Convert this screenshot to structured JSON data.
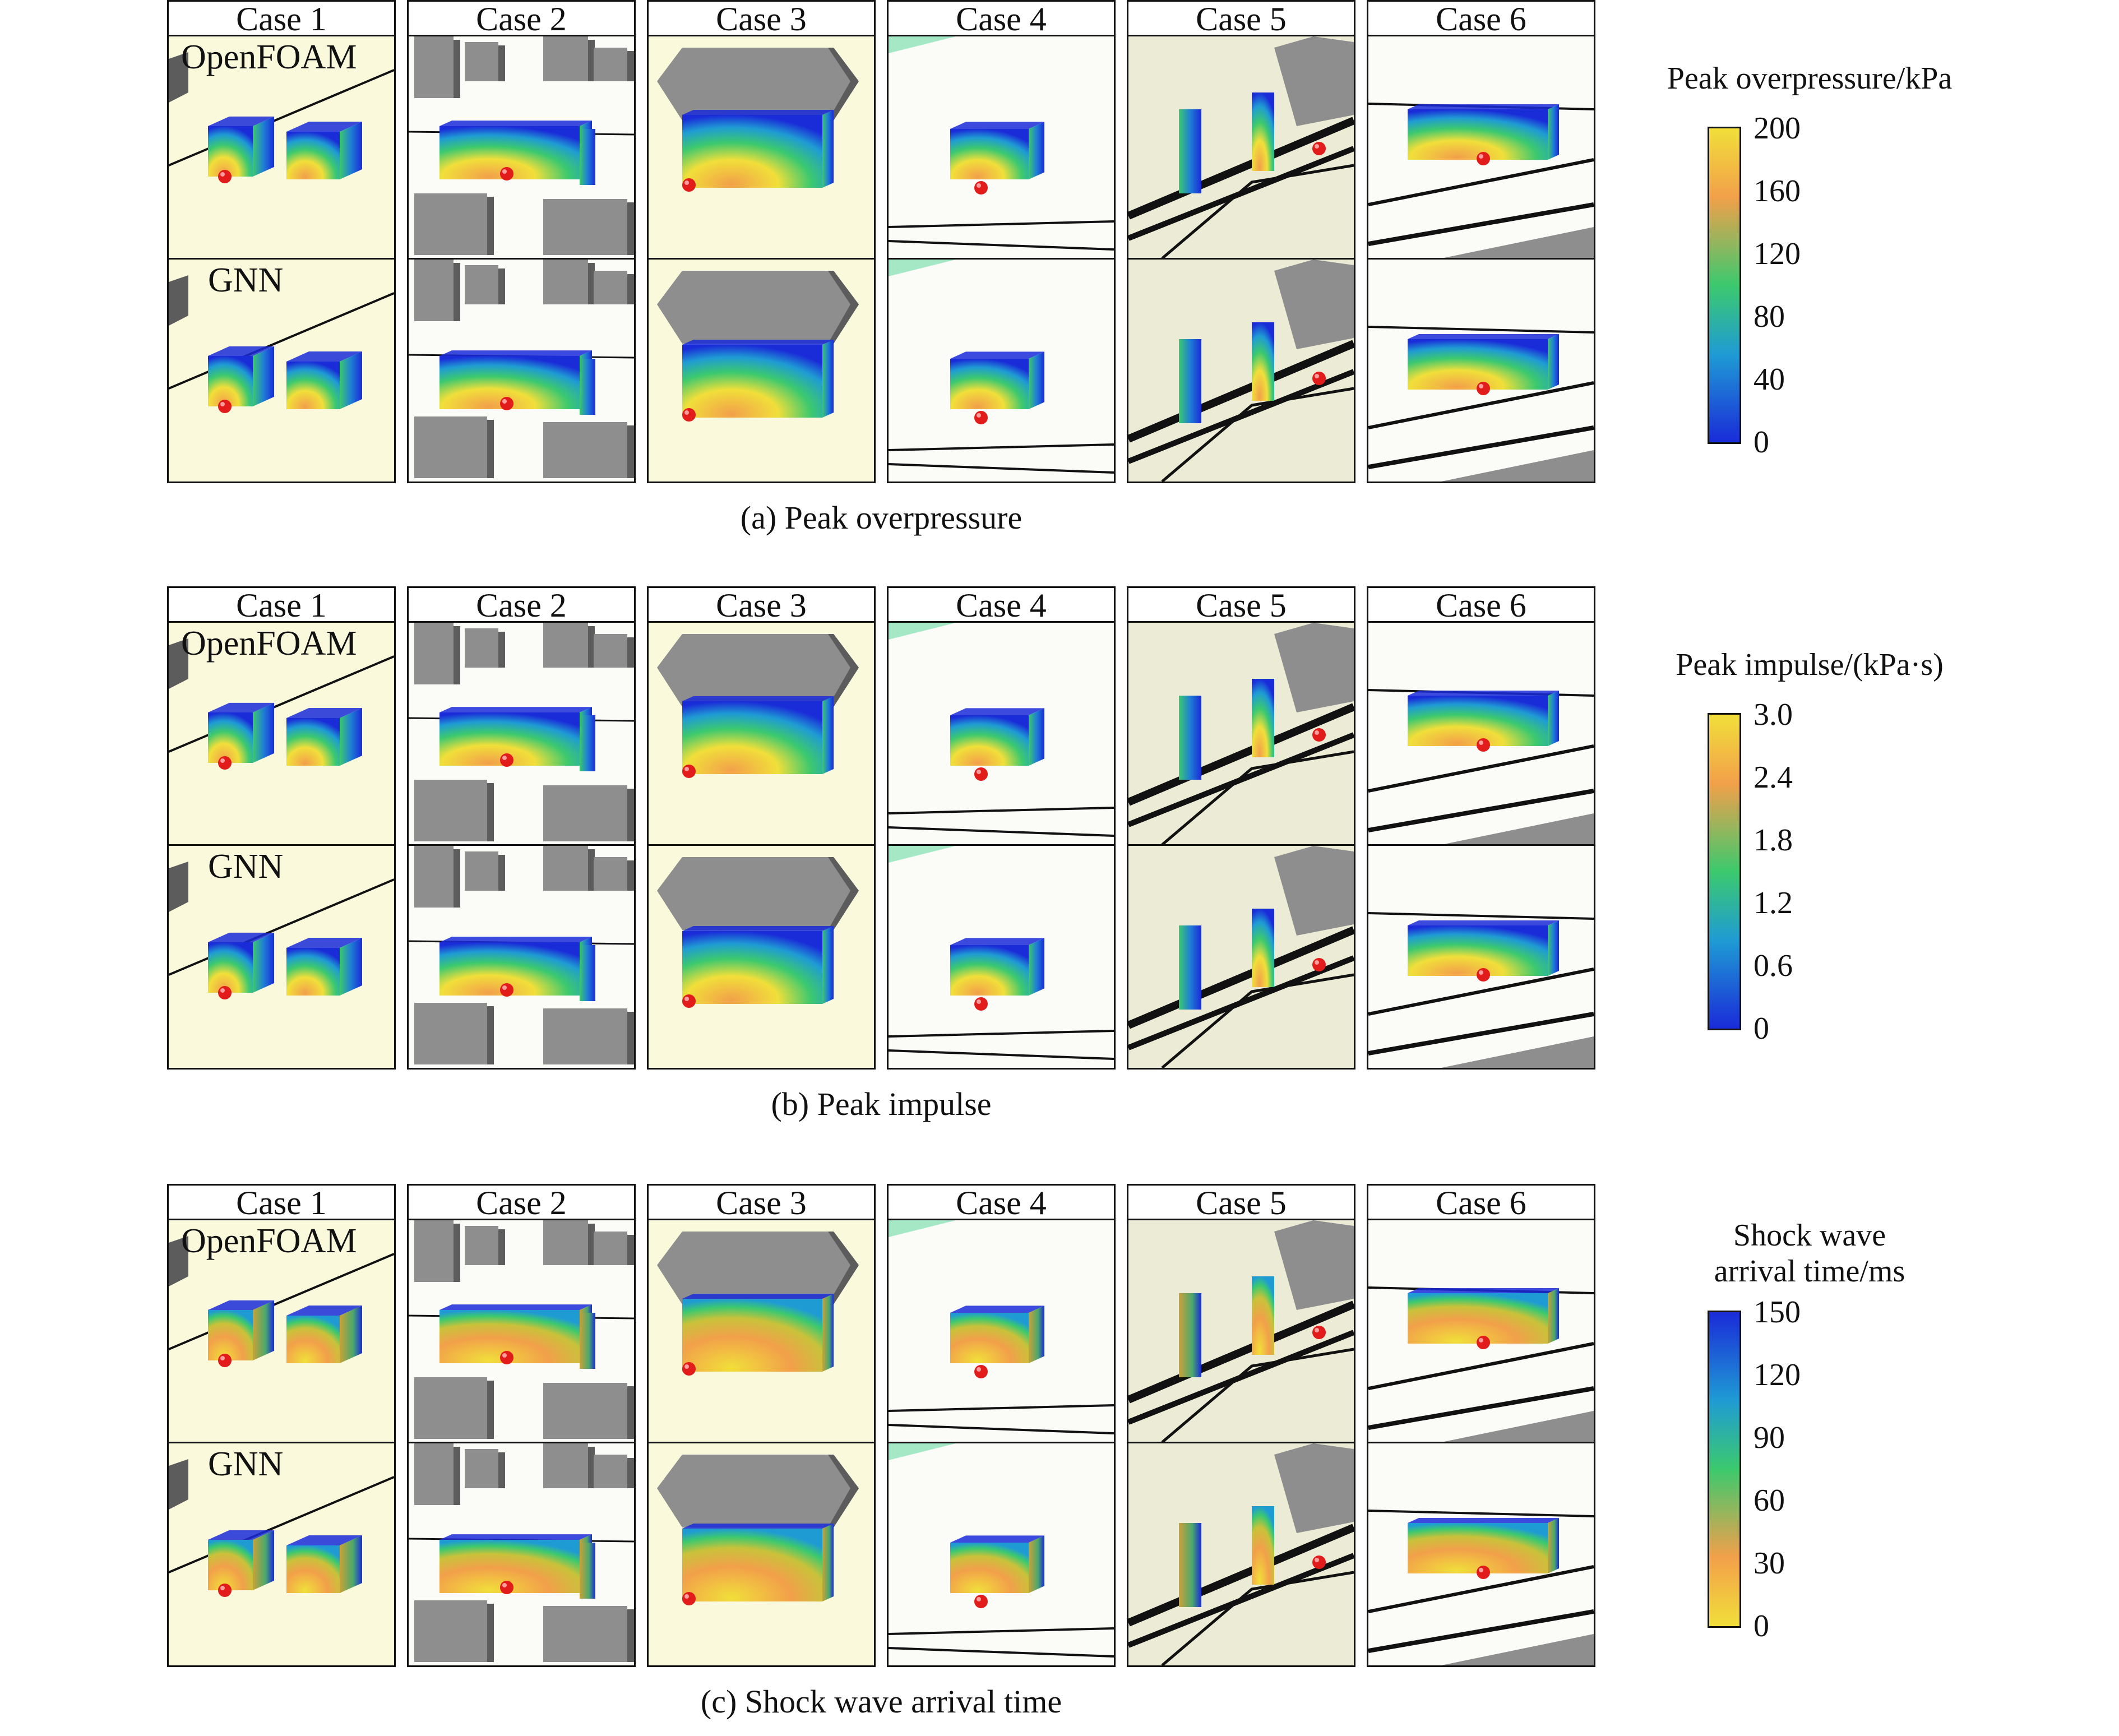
{
  "cases": [
    "Case 1",
    "Case 2",
    "Case 3",
    "Case 4",
    "Case 5",
    "Case 6"
  ],
  "row_labels": {
    "top": "OpenFOAM",
    "bottom": "GNN"
  },
  "panels": [
    {
      "caption": "(a) Peak overpressure",
      "colorbar": {
        "title": "Peak overpressure/kPa",
        "ticks": [
          "200",
          "160",
          "120",
          "80",
          "40",
          "0"
        ],
        "colormap": "parula"
      }
    },
    {
      "caption": "(b) Peak impulse",
      "colorbar": {
        "title": "Peak impulse/(kPa·s)",
        "ticks": [
          "3.0",
          "2.4",
          "1.8",
          "1.2",
          "0.6",
          "0"
        ],
        "colormap": "parula"
      }
    },
    {
      "caption": "(c) Shock wave arrival time",
      "colorbar": {
        "title_line1": "Shock wave",
        "title_line2": "arrival time/ms",
        "ticks": [
          "150",
          "120",
          "90",
          "60",
          "30",
          "0"
        ],
        "colormap": "parula-reversed"
      }
    }
  ],
  "colors": {
    "ground_cream": "#fbf9dc",
    "ground_tan": "#ecebd6",
    "ground_white": "#fbfbf8",
    "building_gray": "#8e8e8e",
    "building_dark": "#5c5c5c",
    "charge_red": "#e21b1b",
    "cmap_low": "#1a2bd8",
    "cmap_mid": "#3cc96e",
    "cmap_high": "#f1df3a",
    "cmap_peak": "#f2a04a"
  }
}
